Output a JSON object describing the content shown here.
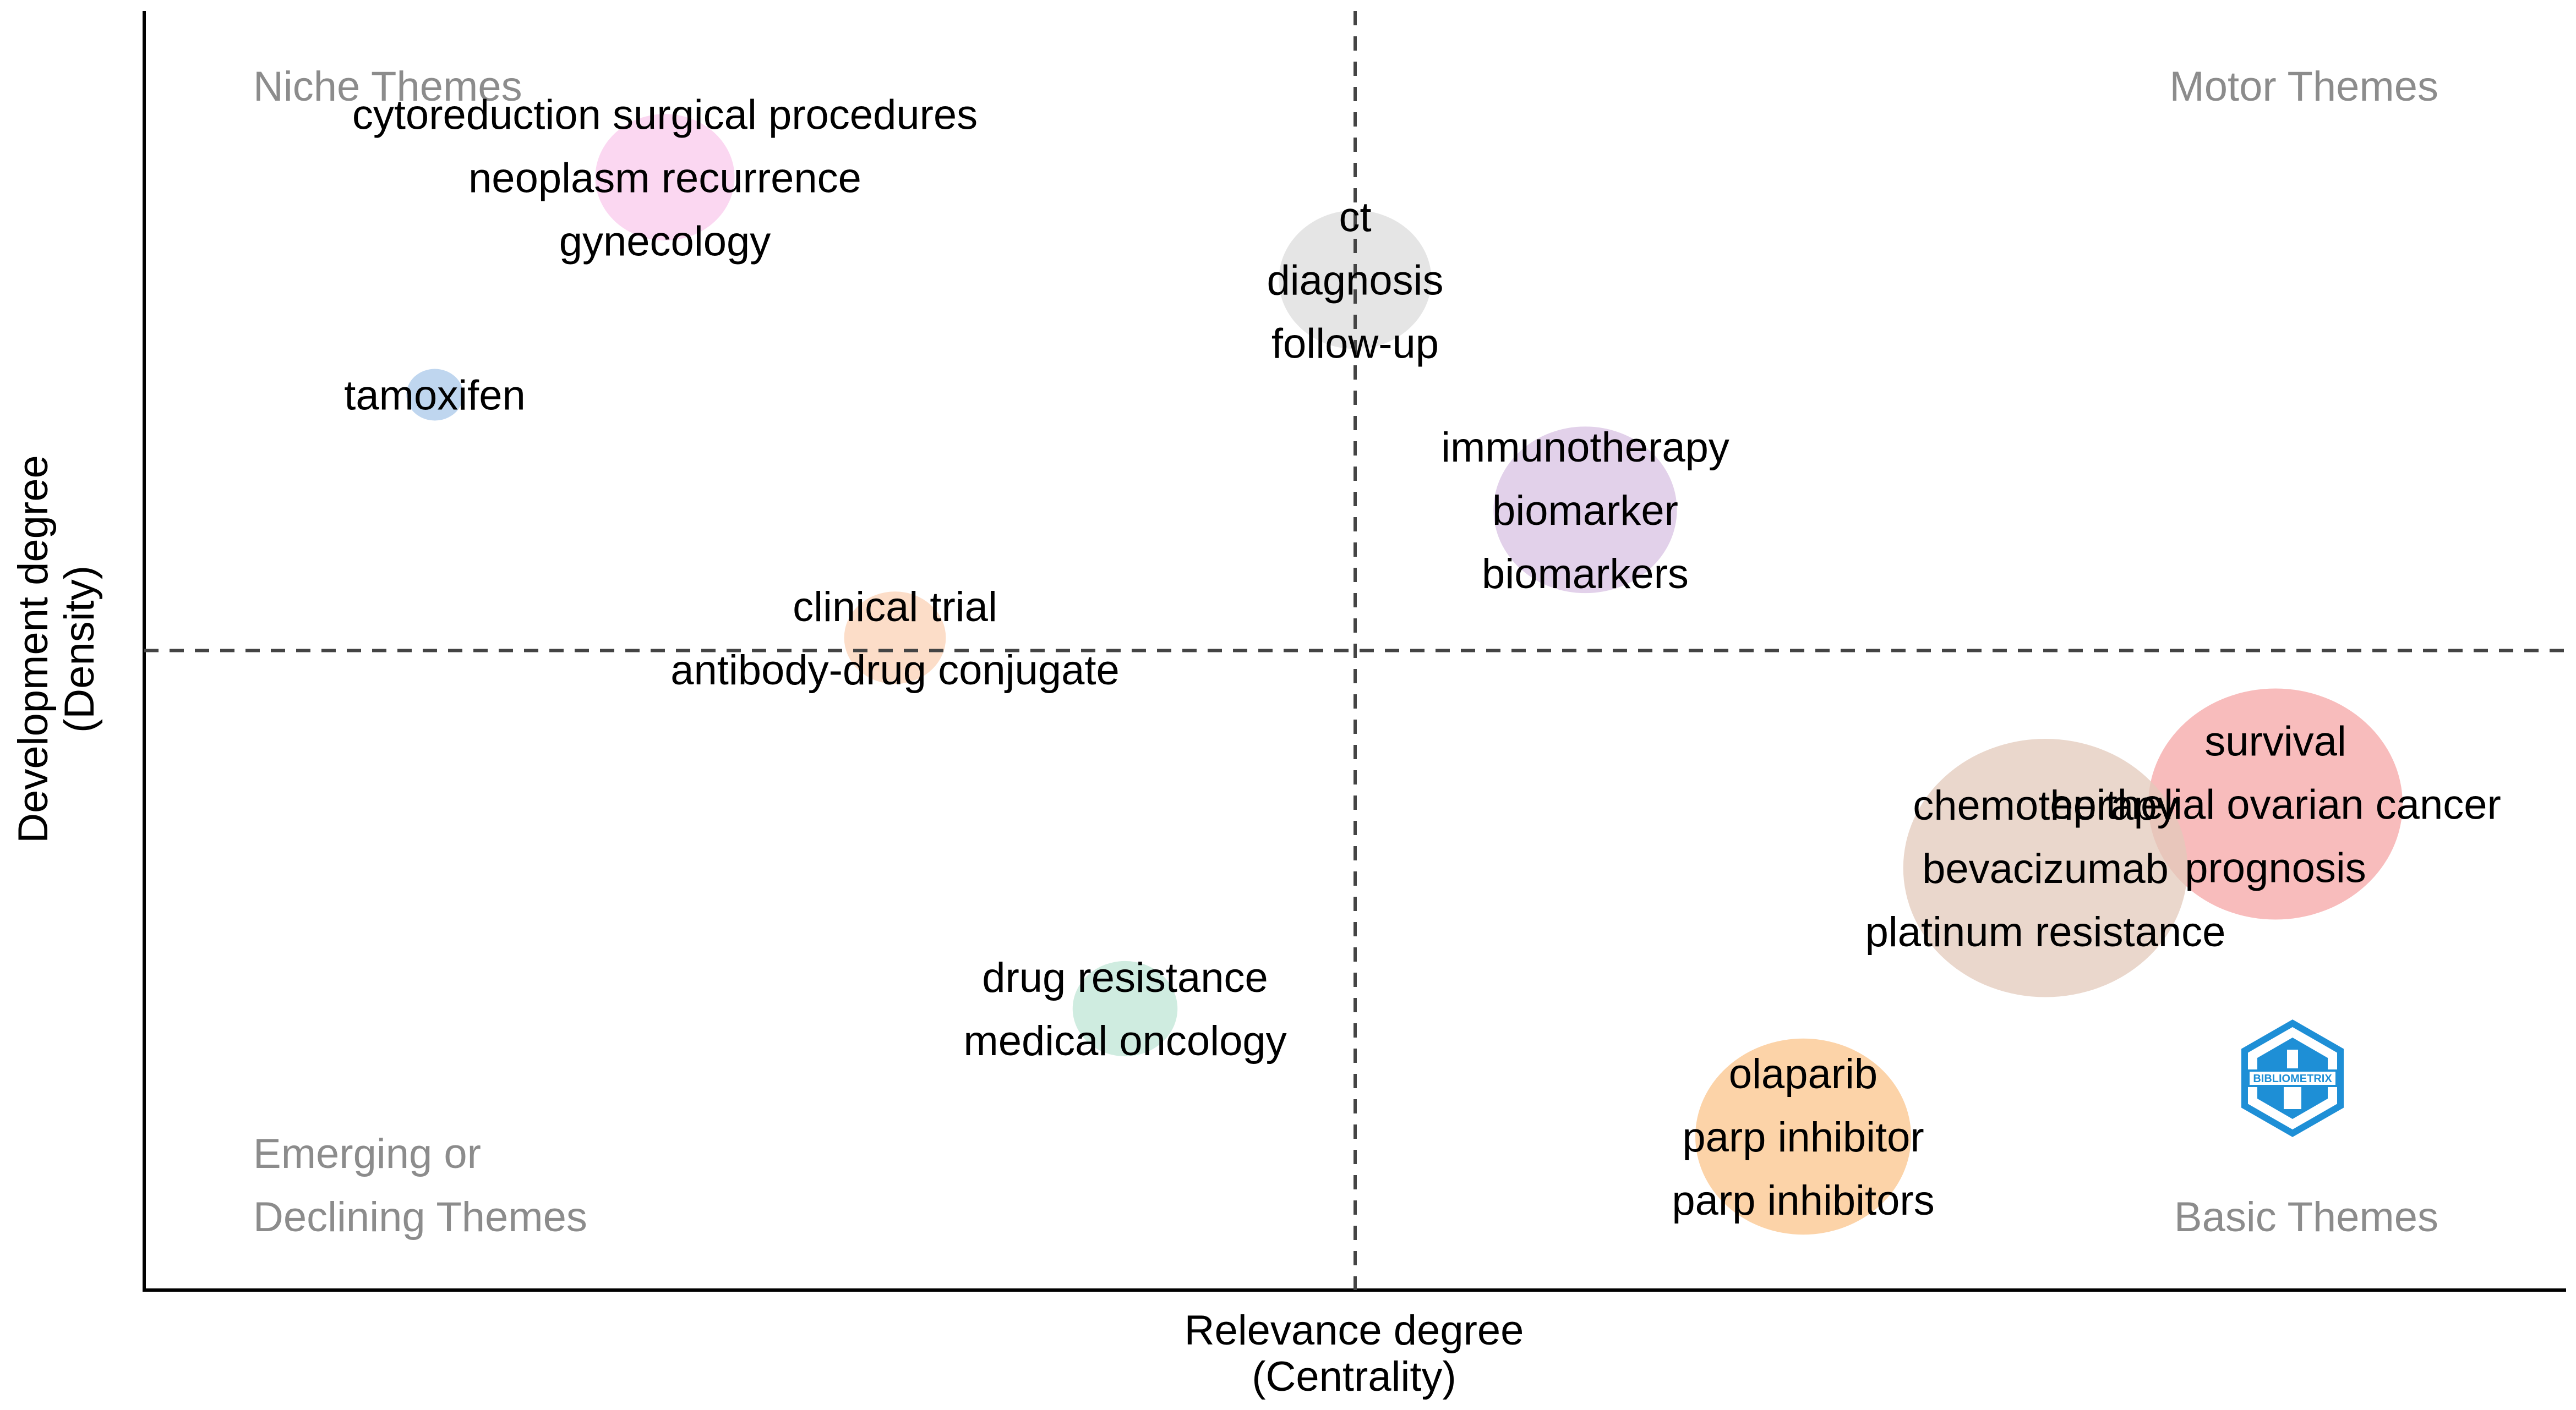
{
  "chart_data": {
    "type": "scatter",
    "subtype": "thematic-map",
    "xlabel": [
      "Relevance degree",
      "(Centrality)"
    ],
    "ylabel": [
      "Development degree",
      "(Density)"
    ],
    "xlim": [
      0.0,
      1.0
    ],
    "ylim": [
      0.0,
      1.0
    ],
    "reference_lines": {
      "x": 0.5,
      "y": 0.5,
      "style": "dashed"
    },
    "grid": false,
    "quadrants": [
      {
        "id": "niche",
        "lines": [
          "Niche Themes"
        ],
        "position": "top-left"
      },
      {
        "id": "motor",
        "lines": [
          "Motor Themes"
        ],
        "position": "top-right"
      },
      {
        "id": "emerging",
        "lines": [
          "Emerging or",
          "Declining Themes"
        ],
        "position": "bottom-left"
      },
      {
        "id": "basic",
        "lines": [
          "Basic Themes"
        ],
        "position": "bottom-right"
      }
    ],
    "clusters": [
      {
        "id": "cytoreduction",
        "labels": [
          "cytoreduction surgical procedures",
          "neoplasm recurrence",
          "gynecology"
        ],
        "x": 0.215,
        "y": 0.87,
        "size": 0.3,
        "color": "#f9c9ec"
      },
      {
        "id": "ct",
        "labels": [
          "ct",
          "diagnosis",
          "follow-up"
        ],
        "x": 0.5,
        "y": 0.79,
        "size": 0.36,
        "color": "#dcdcdc"
      },
      {
        "id": "tamoxifen",
        "labels": [
          "tamoxifen"
        ],
        "x": 0.12,
        "y": 0.7,
        "size": 0.05,
        "color": "#a9c8ea"
      },
      {
        "id": "immunotherapy",
        "labels": [
          "immunotherapy",
          "biomarker",
          "biomarkers"
        ],
        "x": 0.595,
        "y": 0.61,
        "size": 0.52,
        "color": "#d8c1e3"
      },
      {
        "id": "clinical-trial",
        "labels": [
          "clinical trial",
          "antibody-drug conjugate"
        ],
        "x": 0.31,
        "y": 0.51,
        "size": 0.16,
        "color": "#fbd2b5"
      },
      {
        "id": "survival",
        "labels": [
          "survival",
          "epithelial ovarian cancer",
          "prognosis"
        ],
        "x": 0.88,
        "y": 0.38,
        "size": 1.0,
        "color": "#f6a5a5"
      },
      {
        "id": "chemotherapy",
        "labels": [
          "chemotherapy",
          "bevacizumab",
          "platinum resistance"
        ],
        "x": 0.785,
        "y": 0.33,
        "size": 1.25,
        "color": "#e3c9bb"
      },
      {
        "id": "drug-resistance",
        "labels": [
          "drug resistance",
          "medical oncology"
        ],
        "x": 0.405,
        "y": 0.22,
        "size": 0.17,
        "color": "#bfe6d5"
      },
      {
        "id": "olaparib",
        "labels": [
          "olaparib",
          "parp inhibitor",
          "parp inhibitors"
        ],
        "x": 0.685,
        "y": 0.12,
        "size": 0.72,
        "color": "#fbc48b"
      }
    ]
  },
  "watermark": {
    "text": "BIBLIOMETRIX",
    "color": "#1e8fd6"
  }
}
